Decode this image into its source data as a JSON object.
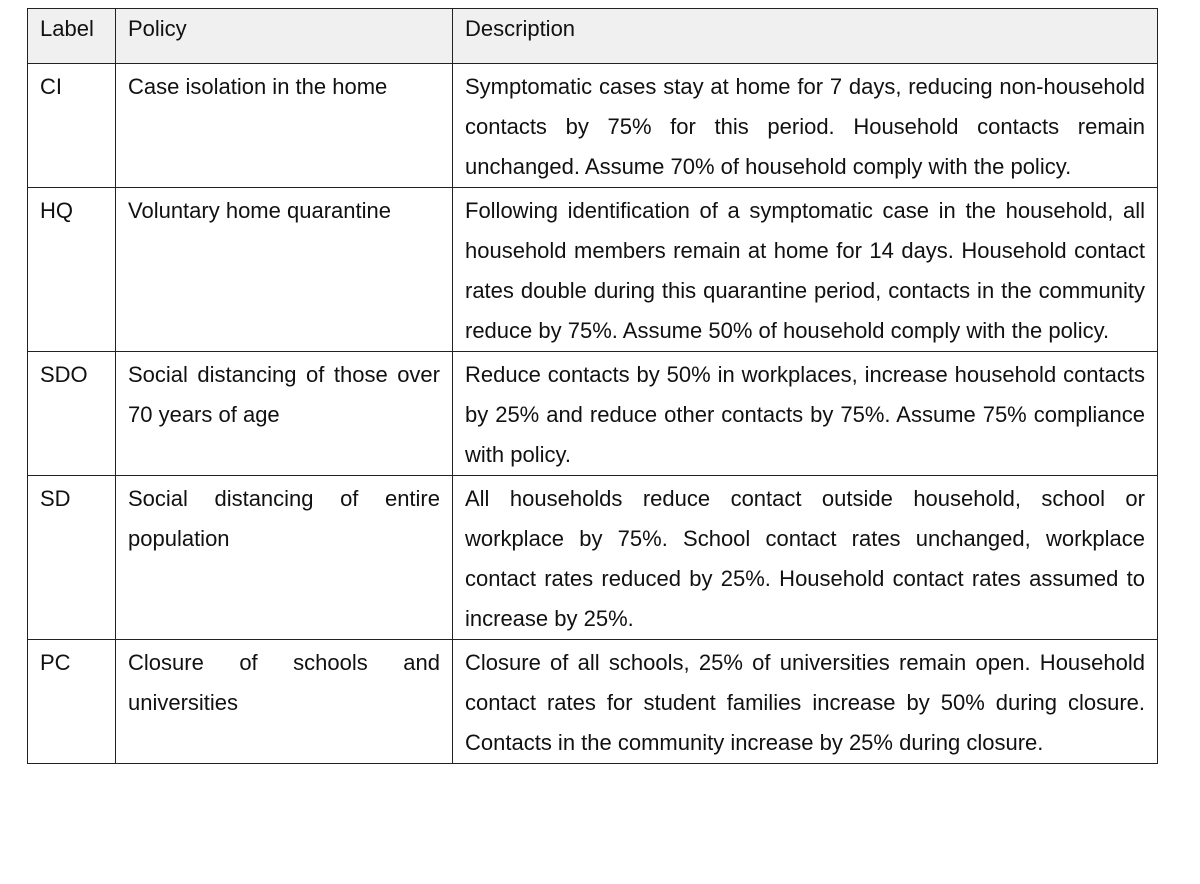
{
  "table": {
    "header": [
      "Label",
      "Policy",
      "Description"
    ],
    "rows": [
      [
        "CI",
        "Case isolation in the home",
        "Symptomatic cases stay at home for 7 days, reducing non-household contacts by 75% for this period. Household contacts remain unchanged. Assume 70% of household comply with the policy."
      ],
      [
        "HQ",
        "Voluntary home quarantine",
        "Following identification of a symptomatic case in the household, all household members remain at home for 14 days. Household contact rates double during this quarantine period, contacts in the community reduce by 75%. Assume 50% of household comply with the policy."
      ],
      [
        "SDO",
        "Social distancing of those over 70 years of age",
        "Reduce contacts by 50% in workplaces, increase household contacts by 25% and reduce other contacts by 75%. Assume 75% compliance with policy."
      ],
      [
        "SD",
        "Social distancing of entire population",
        "All households reduce contact outside household, school or workplace by 75%. School contact rates unchanged, workplace contact rates reduced by 25%. Household contact rates assumed to increase by 25%."
      ],
      [
        "PC",
        "Closure of schools and universities",
        "Closure of all schools, 25% of universities remain open. Household contact rates for student families increase by 50% during closure. Contacts in the community increase by 25% during closure."
      ]
    ]
  }
}
